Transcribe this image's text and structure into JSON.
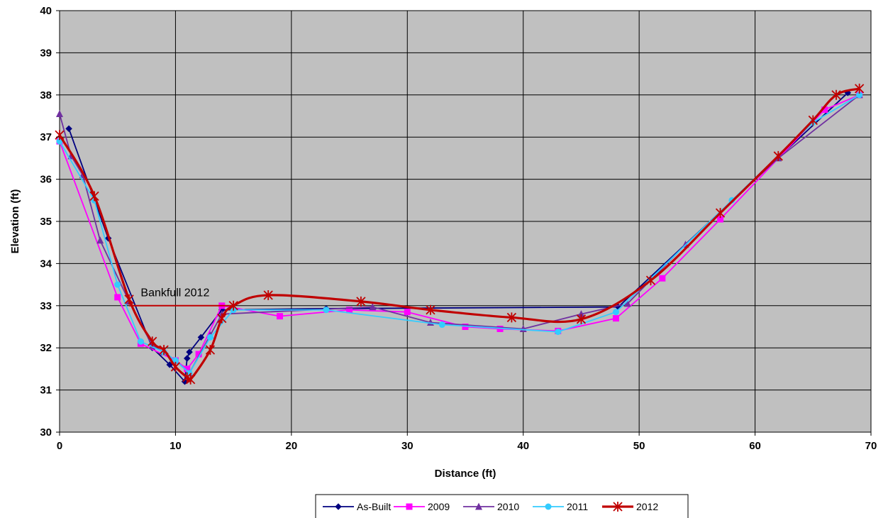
{
  "chart_data": {
    "type": "line",
    "title": "",
    "xlabel": "Distance (ft)",
    "ylabel": "Elevation (ft)",
    "xlim": [
      0,
      70
    ],
    "ylim": [
      30,
      40
    ],
    "xticks": [
      0,
      10,
      20,
      30,
      40,
      50,
      60,
      70
    ],
    "yticks": [
      30,
      31,
      32,
      33,
      34,
      35,
      36,
      37,
      38,
      39,
      40
    ],
    "grid": true,
    "legend_position": "bottom",
    "plot_background": "#c0c0c0",
    "series": [
      {
        "name": "As-Built",
        "color": "#000080",
        "marker": "diamond",
        "smooth": false,
        "points": [
          [
            0.8,
            37.2
          ],
          [
            4.2,
            34.6
          ],
          [
            8,
            32.0
          ],
          [
            9.5,
            31.6
          ],
          [
            10.8,
            31.2
          ],
          [
            11,
            31.75
          ],
          [
            11.2,
            31.9
          ],
          [
            12.2,
            32.25
          ],
          [
            14,
            32.9
          ],
          [
            23,
            32.93
          ],
          [
            48.2,
            32.97
          ],
          [
            68,
            38.05
          ]
        ]
      },
      {
        "name": "2009",
        "color": "#ff00ff",
        "marker": "square",
        "smooth": false,
        "points": [
          [
            0,
            36.9
          ],
          [
            5,
            33.2
          ],
          [
            7,
            32.1
          ],
          [
            10,
            31.7
          ],
          [
            11,
            31.5
          ],
          [
            12,
            31.85
          ],
          [
            14,
            33.0
          ],
          [
            19,
            32.75
          ],
          [
            25,
            32.9
          ],
          [
            30,
            32.85
          ],
          [
            35,
            32.5
          ],
          [
            38,
            32.45
          ],
          [
            43,
            32.4
          ],
          [
            48,
            32.7
          ],
          [
            52,
            33.65
          ],
          [
            57,
            35.05
          ],
          [
            66,
            37.65
          ],
          [
            69,
            38.0
          ]
        ]
      },
      {
        "name": "2010",
        "color": "#7030a0",
        "marker": "triangle",
        "smooth": false,
        "points": [
          [
            0,
            37.55
          ],
          [
            1,
            36.55
          ],
          [
            2,
            36.1
          ],
          [
            3.5,
            34.55
          ],
          [
            6,
            33.1
          ],
          [
            8,
            32.05
          ],
          [
            9,
            31.9
          ],
          [
            10,
            31.7
          ],
          [
            11.2,
            31.4
          ],
          [
            13,
            32.3
          ],
          [
            14,
            32.8
          ],
          [
            27,
            32.97
          ],
          [
            32,
            32.6
          ],
          [
            40,
            32.45
          ],
          [
            45,
            32.8
          ],
          [
            49,
            33.05
          ],
          [
            54,
            34.45
          ],
          [
            62,
            36.5
          ],
          [
            69,
            38.0
          ]
        ]
      },
      {
        "name": "2011",
        "color": "#33ccff",
        "marker": "circle",
        "smooth": false,
        "points": [
          [
            0,
            36.9
          ],
          [
            3,
            35.5
          ],
          [
            5,
            33.5
          ],
          [
            7,
            32.15
          ],
          [
            9,
            31.9
          ],
          [
            10,
            31.7
          ],
          [
            11.2,
            31.4
          ],
          [
            13,
            32.25
          ],
          [
            15,
            32.9
          ],
          [
            23,
            32.9
          ],
          [
            33,
            32.55
          ],
          [
            43,
            32.38
          ],
          [
            48,
            32.85
          ],
          [
            58,
            35.5
          ],
          [
            65,
            37.35
          ],
          [
            69,
            38.0
          ]
        ]
      },
      {
        "name": "2012",
        "color": "#c00000",
        "marker": "asterisk",
        "smooth": true,
        "points": [
          [
            0,
            37.05
          ],
          [
            3,
            35.6
          ],
          [
            6,
            33.15
          ],
          [
            8,
            32.15
          ],
          [
            9,
            31.95
          ],
          [
            10,
            31.55
          ],
          [
            11,
            31.3
          ],
          [
            11.3,
            31.25
          ],
          [
            13,
            31.95
          ],
          [
            14,
            32.7
          ],
          [
            15,
            33.0
          ],
          [
            18,
            33.25
          ],
          [
            26,
            33.1
          ],
          [
            32,
            32.9
          ],
          [
            39,
            32.72
          ],
          [
            45,
            32.68
          ],
          [
            51,
            33.6
          ],
          [
            57,
            35.2
          ],
          [
            62,
            36.55
          ],
          [
            65,
            37.4
          ],
          [
            67,
            38.0
          ],
          [
            69,
            38.15
          ]
        ]
      }
    ],
    "annotations": [
      {
        "text": "Bankfull 2012",
        "line_y": 33.0,
        "line_x": [
          6,
          15
        ],
        "anchor_x": 7,
        "anchor_y": 33.22,
        "color": "#c00000"
      }
    ]
  }
}
